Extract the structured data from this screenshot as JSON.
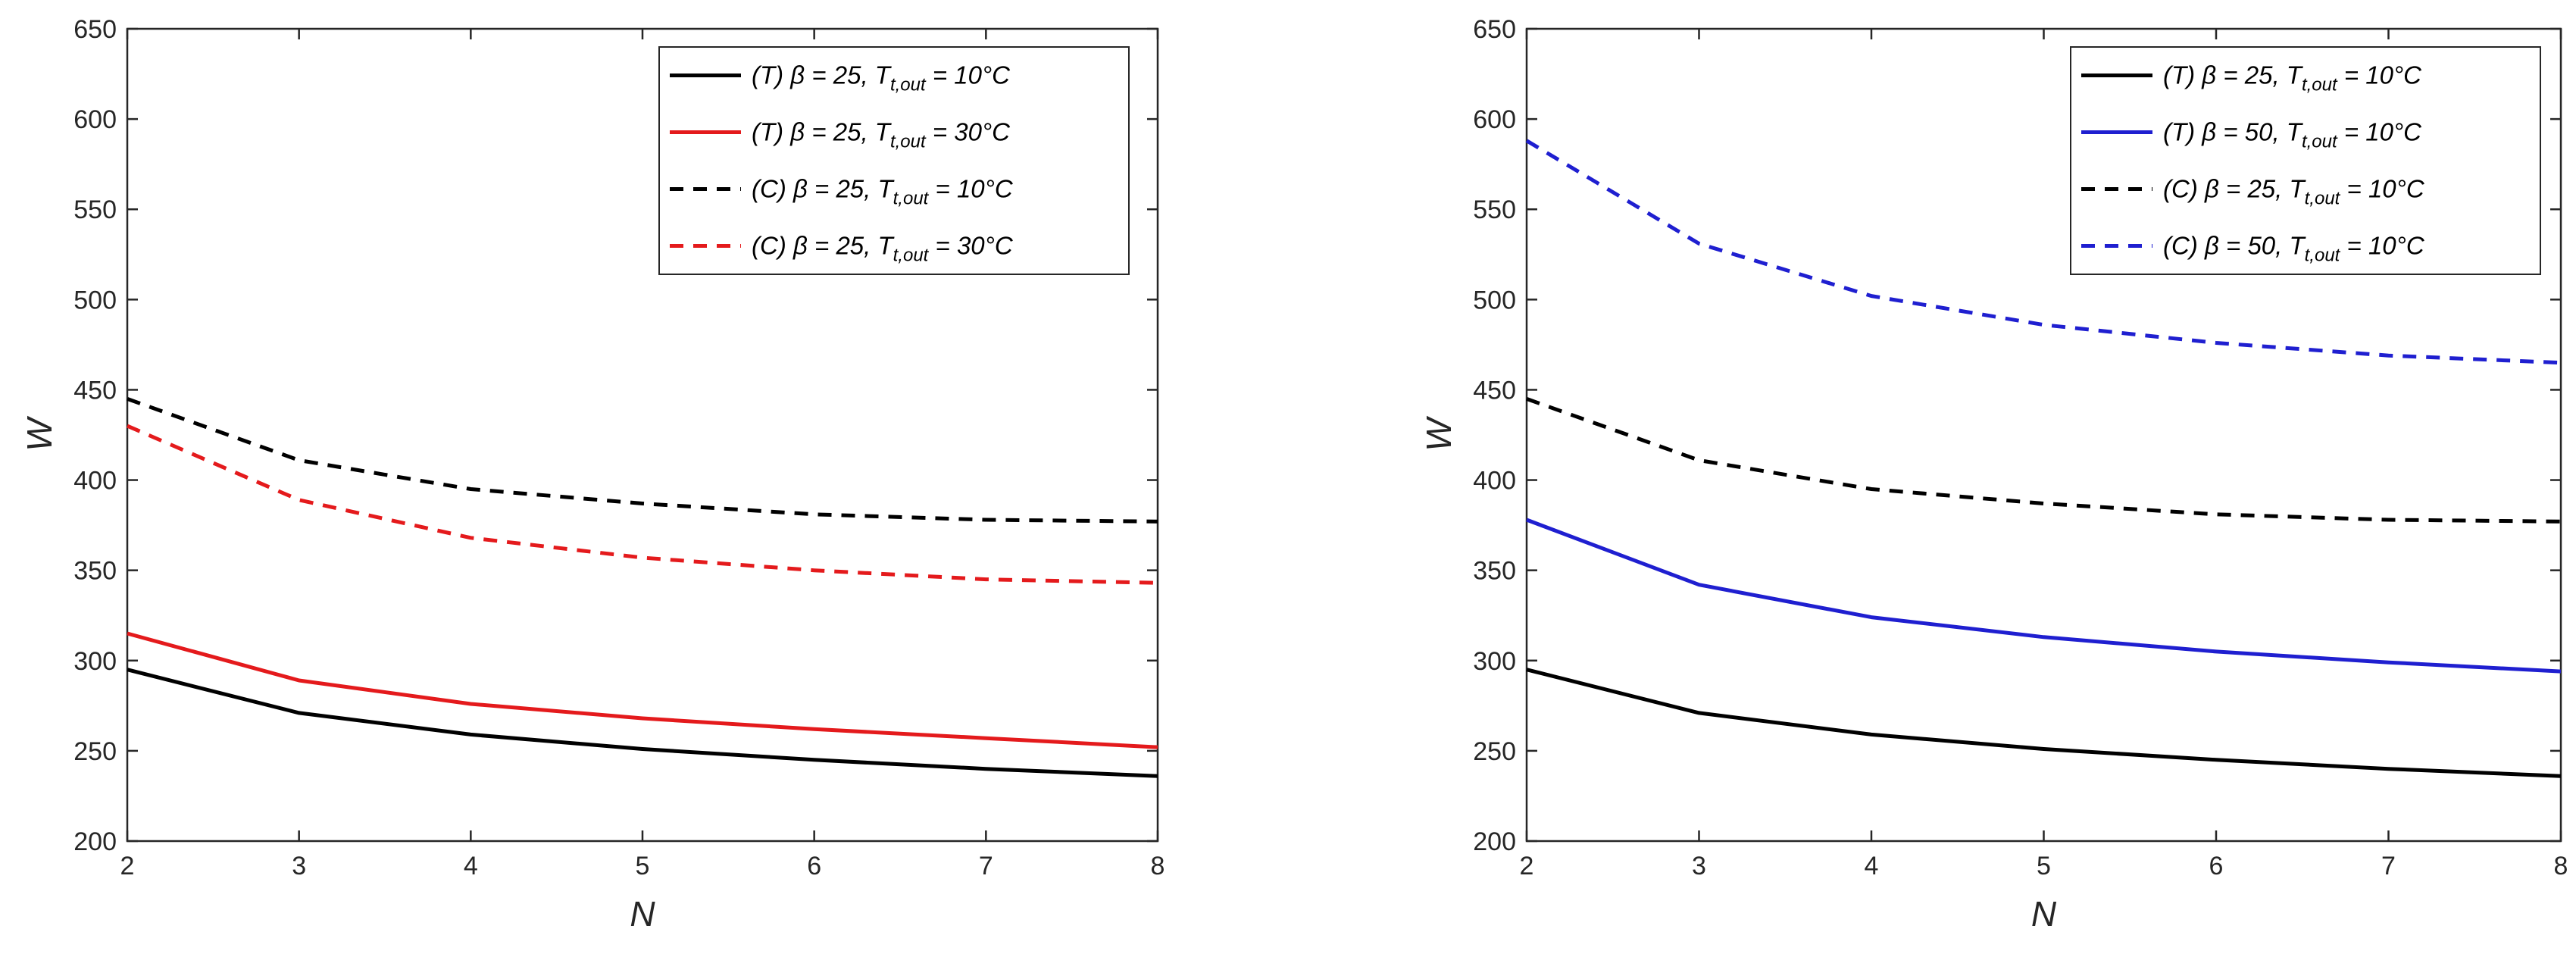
{
  "chart_data": [
    {
      "type": "line",
      "xlabel": "N",
      "ylabel": "W",
      "xlim": [
        2,
        8
      ],
      "ylim": [
        200,
        650
      ],
      "xticks": [
        "2",
        "3",
        "4",
        "5",
        "6",
        "7",
        "8"
      ],
      "yticks": [
        "200",
        "250",
        "300",
        "350",
        "400",
        "450",
        "500",
        "550",
        "600",
        "650"
      ],
      "legend_position": "top-right",
      "x": [
        2,
        3,
        4,
        5,
        6,
        7,
        8
      ],
      "series": [
        {
          "name": "(T) β = 25, T t,out = 10°C",
          "prefix": "(T) β = 25, T",
          "sub": "t,out",
          "suffix": " = 10°C",
          "color": "#000000",
          "dash": "solid",
          "values": [
            295,
            271,
            259,
            251,
            245,
            240,
            236
          ]
        },
        {
          "name": "(T) β = 25, T t,out = 30°C",
          "prefix": "(T) β = 25, T",
          "sub": "t,out",
          "suffix": " = 30°C",
          "color": "#e41a1c",
          "dash": "dashed_no",
          "values": [
            315,
            289,
            276,
            268,
            262,
            257,
            252
          ]
        },
        {
          "name": "(C) β = 25, T t,out = 10°C",
          "prefix": "(C) β = 25, T",
          "sub": "t,out",
          "suffix": " = 10°C",
          "color": "#000000",
          "dash": "dashed",
          "values": [
            445,
            411,
            395,
            387,
            381,
            378,
            377
          ]
        },
        {
          "name": "(C) β = 25, T t,out = 30°C",
          "prefix": "(C) β = 25, T",
          "sub": "t,out",
          "suffix": " = 30°C",
          "color": "#e41a1c",
          "dash": "dashed",
          "values": [
            430,
            389,
            368,
            357,
            350,
            345,
            343
          ]
        }
      ]
    },
    {
      "type": "line",
      "xlabel": "N",
      "ylabel": "W",
      "xlim": [
        2,
        8
      ],
      "ylim": [
        200,
        650
      ],
      "xticks": [
        "2",
        "3",
        "4",
        "5",
        "6",
        "7",
        "8"
      ],
      "yticks": [
        "200",
        "250",
        "300",
        "350",
        "400",
        "450",
        "500",
        "550",
        "600",
        "650"
      ],
      "legend_position": "top-right",
      "x": [
        2,
        3,
        4,
        5,
        6,
        7,
        8
      ],
      "series": [
        {
          "name": "(T) β = 25, T t,out = 10°C",
          "prefix": "(T) β = 25, T",
          "sub": "t,out",
          "suffix": " = 10°C",
          "color": "#000000",
          "dash": "solid",
          "values": [
            295,
            271,
            259,
            251,
            245,
            240,
            236
          ]
        },
        {
          "name": "(T) β = 50, T t,out = 10°C",
          "prefix": "(T) β = 50, T",
          "sub": "t,out",
          "suffix": " = 10°C",
          "color": "#1f1fd0",
          "dash": "solid",
          "values": [
            378,
            342,
            324,
            313,
            305,
            299,
            294
          ]
        },
        {
          "name": "(C) β = 25, T t,out = 10°C",
          "prefix": "(C) β = 25, T",
          "sub": "t,out",
          "suffix": " = 10°C",
          "color": "#000000",
          "dash": "dashed",
          "values": [
            445,
            411,
            395,
            387,
            381,
            378,
            377
          ]
        },
        {
          "name": "(C) β = 50, T t,out = 10°C",
          "prefix": "(C) β = 50, T",
          "sub": "t,out",
          "suffix": " = 10°C",
          "color": "#1f1fd0",
          "dash": "dashed",
          "values": [
            588,
            531,
            502,
            486,
            476,
            469,
            465
          ]
        }
      ]
    }
  ]
}
